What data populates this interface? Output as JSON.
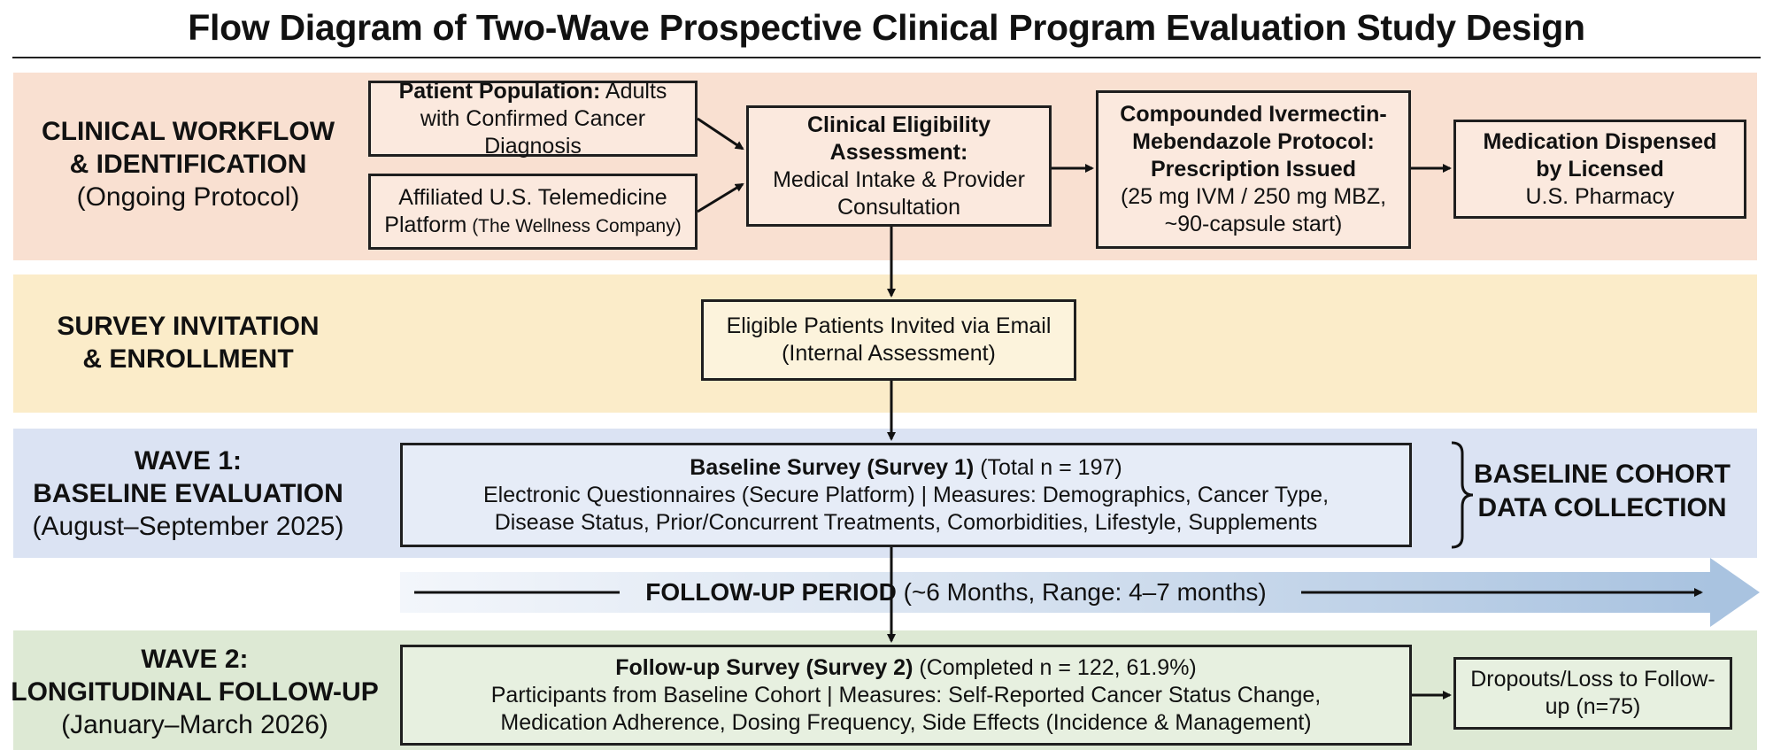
{
  "title": "Flow Diagram of Two-Wave Prospective Clinical Program Evaluation Study Design",
  "stages": {
    "clinical": {
      "title_line1": "CLINICAL WORKFLOW",
      "title_line2": "& IDENTIFICATION",
      "subtitle": "(Ongoing Protocol)"
    },
    "survey": {
      "title_line1": "SURVEY INVITATION",
      "title_line2": "& ENROLLMENT"
    },
    "wave1": {
      "title_line1": "WAVE 1:",
      "title_line2": "BASELINE EVALUATION",
      "subtitle": "(August–September 2025)"
    },
    "wave2": {
      "title_line1": "WAVE 2:",
      "title_line2": "LONGITUDINAL FOLLOW-UP",
      "subtitle": "(January–March 2026)"
    }
  },
  "boxes": {
    "population": {
      "bold": "Patient Population:",
      "rest1": " Adults",
      "line2": "with Confirmed Cancer Diagnosis"
    },
    "telemedicine": {
      "line1": "Affiliated U.S. Telemedicine",
      "line2a": "Platform",
      "line2b": " (The Wellness Company)"
    },
    "eligibility": {
      "bold1": "Clinical Eligibility",
      "bold2": "Assessment:",
      "line3": "Medical Intake & Provider",
      "line4": "Consultation"
    },
    "protocol": {
      "bold1": "Compounded Ivermectin-",
      "bold2": "Mebendazole Protocol:",
      "bold3": "Prescription Issued",
      "line4": "(25 mg IVM / 250 mg MBZ,",
      "line5": "~90-capsule start)"
    },
    "dispensed": {
      "bold1": "Medication Dispensed",
      "bold2": "by Licensed",
      "line3": "U.S. Pharmacy"
    },
    "invited": {
      "line1": "Eligible Patients Invited via Email",
      "line2": "(Internal Assessment)"
    },
    "baseline": {
      "bold": "Baseline Survey (Survey 1)",
      "total": " (Total n = 197)",
      "line2": "Electronic Questionnaires (Secure Platform)  |  Measures: Demographics, Cancer Type,",
      "line3": "Disease Status, Prior/Concurrent Treatments, Comorbidities, Lifestyle, Supplements"
    },
    "followup": {
      "bold": "Follow-up Survey (Survey 2)",
      "completed": " (Completed n = 122, 61.9%)",
      "line2": "Participants from Baseline Cohort  |  Measures: Self-Reported Cancer Status Change,",
      "line3": "Medication Adherence, Dosing Frequency, Side Effects (Incidence & Management)"
    },
    "dropouts": {
      "line1": "Dropouts/Loss to Follow-",
      "line2": "up (n=75)"
    }
  },
  "cohort_label": {
    "line1": "BASELINE COHORT",
    "line2": "DATA COLLECTION"
  },
  "follow_period": {
    "bold": "FOLLOW-UP PERIOD",
    "rest": " (~6 Months, Range: 4–7 months)"
  },
  "colors": {
    "clinical_band": "#f9e0d1",
    "survey_band": "#fbecc9",
    "wave1_band": "#dbe3f3",
    "wave2_band": "#dde9d4",
    "arrow": "#111111"
  }
}
